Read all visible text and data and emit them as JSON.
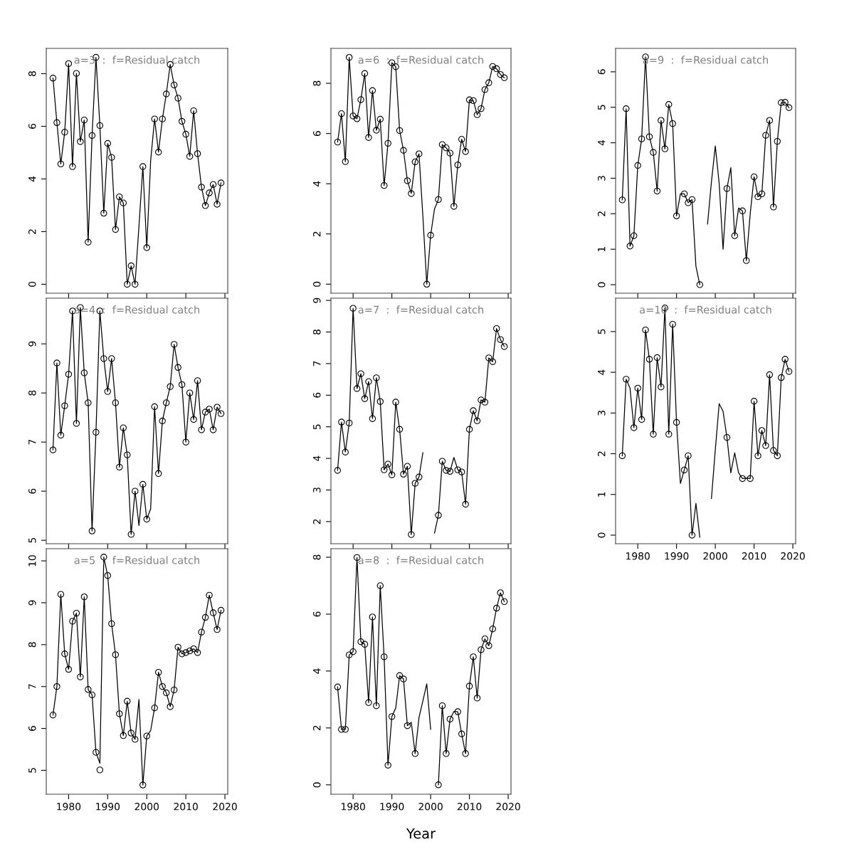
{
  "chart_data": [
    {
      "type": "line",
      "title": "a=3  :  f=Residual catch",
      "x": [
        1976,
        1977,
        1978,
        1979,
        1980,
        1981,
        1982,
        1983,
        1984,
        1985,
        1986,
        1987,
        1988,
        1989,
        1990,
        1991,
        1992,
        1993,
        1994,
        1995,
        1996,
        1997,
        1998,
        1999,
        2000,
        2001,
        2002,
        2003,
        2004,
        2005,
        2006,
        2007,
        2008,
        2009,
        2010,
        2011,
        2012,
        2013,
        2014,
        2015,
        2016,
        2017,
        2018,
        2019
      ],
      "xlim": [
        1974.28,
        2020.72
      ],
      "xticks": [
        1980,
        1990,
        2000,
        2010,
        2020
      ],
      "ylim": [
        -0.34,
        8.96
      ],
      "yticks": [
        0,
        2,
        4,
        6,
        8
      ],
      "tick_labels": "y",
      "grid": false,
      "series": [
        {
          "type": "line",
          "color": "#000000",
          "marker": "none",
          "values": [
            7.83,
            6.14,
            4.57,
            5.78,
            8.38,
            4.47,
            8.01,
            5.42,
            6.24,
            1.6,
            5.65,
            8.62,
            6.03,
            2.7,
            5.35,
            4.82,
            2.08,
            3.32,
            3.09,
            0,
            0.7,
            0,
            2.2,
            4.47,
            1.39,
            4.7,
            6.28,
            5.02,
            6.28,
            7.23,
            8.35,
            7.57,
            7.07,
            6.19,
            5.7,
            4.86,
            6.59,
            4.96,
            3.69,
            2.99,
            3.47,
            3.79,
            3.04,
            3.85
          ]
        },
        {
          "type": "scatter",
          "color": "#000000",
          "marker": "circle",
          "values": [
            7.83,
            6.14,
            4.57,
            5.78,
            8.38,
            4.47,
            8.01,
            5.42,
            6.24,
            1.6,
            5.65,
            8.62,
            6.03,
            2.7,
            5.35,
            4.82,
            2.08,
            3.32,
            3.09,
            0,
            0.7,
            0,
            null,
            4.47,
            1.39,
            null,
            6.28,
            5.02,
            6.28,
            7.23,
            8.35,
            7.57,
            7.07,
            6.19,
            5.7,
            4.86,
            6.59,
            4.96,
            3.69,
            2.99,
            3.47,
            3.79,
            3.04,
            3.85
          ]
        }
      ]
    },
    {
      "type": "line",
      "title": "a=4  :  f=Residual catch",
      "x": [
        1976,
        1977,
        1978,
        1979,
        1980,
        1981,
        1982,
        1983,
        1984,
        1985,
        1986,
        1987,
        1988,
        1989,
        1990,
        1991,
        1992,
        1993,
        1994,
        1995,
        1996,
        1997,
        1998,
        1999,
        2000,
        2001,
        2002,
        2003,
        2004,
        2005,
        2006,
        2007,
        2008,
        2009,
        2010,
        2011,
        2012,
        2013,
        2014,
        2015,
        2016,
        2017,
        2018,
        2019
      ],
      "xlim": [
        1974.28,
        2020.72
      ],
      "xticks": [
        1980,
        1990,
        2000,
        2010,
        2020
      ],
      "ylim": [
        4.93,
        9.93
      ],
      "yticks": [
        5,
        6,
        7,
        8,
        9
      ],
      "tick_labels": "y",
      "grid": false,
      "series": [
        {
          "type": "line",
          "color": "#000000",
          "marker": "none",
          "values": [
            6.84,
            8.61,
            7.14,
            7.74,
            8.38,
            9.67,
            7.38,
            9.74,
            8.41,
            7.8,
            5.19,
            7.2,
            9.67,
            8.7,
            8.03,
            8.7,
            7.8,
            6.49,
            7.29,
            6.74,
            5.12,
            6.0,
            5.3,
            6.14,
            5.43,
            5.64,
            7.72,
            6.36,
            7.43,
            7.8,
            8.13,
            8.99,
            8.52,
            8.17,
            7.0,
            8.0,
            7.46,
            8.25,
            7.25,
            7.61,
            7.67,
            7.25,
            7.71,
            7.58
          ]
        },
        {
          "type": "scatter",
          "color": "#000000",
          "marker": "circle",
          "values": [
            6.84,
            8.61,
            7.14,
            7.74,
            8.38,
            9.67,
            7.38,
            9.74,
            8.41,
            7.8,
            5.19,
            7.2,
            9.67,
            8.7,
            8.03,
            8.7,
            7.8,
            6.49,
            7.29,
            6.74,
            5.12,
            6.0,
            null,
            6.14,
            5.43,
            null,
            7.72,
            6.36,
            7.43,
            7.8,
            8.13,
            8.99,
            8.52,
            8.17,
            7.0,
            8.0,
            7.46,
            8.25,
            7.25,
            7.61,
            7.67,
            7.25,
            7.71,
            7.58
          ]
        }
      ]
    },
    {
      "type": "line",
      "title": "a=5  :  f=Residual catch",
      "x": [
        1976,
        1977,
        1978,
        1979,
        1980,
        1981,
        1982,
        1983,
        1984,
        1985,
        1986,
        1987,
        1988,
        1989,
        1990,
        1991,
        1992,
        1993,
        1994,
        1995,
        1996,
        1997,
        1998,
        1999,
        2000,
        2001,
        2002,
        2003,
        2004,
        2005,
        2006,
        2007,
        2008,
        2009,
        2010,
        2011,
        2012,
        2013,
        2014,
        2015,
        2016,
        2017,
        2018,
        2019
      ],
      "xlim": [
        1974.28,
        2020.72
      ],
      "xticks": [
        1980,
        1990,
        2000,
        2010,
        2020
      ],
      "ylim": [
        4.43,
        10.29
      ],
      "yticks": [
        5,
        6,
        7,
        8,
        9,
        10
      ],
      "grid": false,
      "series": [
        {
          "type": "line",
          "color": "#000000",
          "marker": "none",
          "values": [
            6.32,
            7.0,
            9.2,
            7.78,
            7.41,
            8.56,
            8.75,
            7.23,
            9.14,
            6.93,
            6.8,
            5.43,
            5.17,
            10.09,
            9.65,
            8.5,
            7.76,
            6.35,
            5.83,
            6.65,
            5.89,
            5.74,
            6.69,
            4.65,
            5.82,
            5.95,
            6.49,
            7.34,
            7.0,
            6.85,
            6.52,
            6.92,
            7.94,
            7.78,
            7.81,
            7.85,
            7.9,
            7.81,
            8.3,
            8.65,
            9.18,
            8.76,
            8.36,
            8.82
          ]
        },
        {
          "type": "scatter",
          "color": "#000000",
          "marker": "circle",
          "values": [
            6.32,
            7.0,
            9.2,
            7.78,
            7.41,
            8.56,
            8.75,
            7.23,
            9.14,
            6.93,
            6.8,
            5.43,
            5.01,
            10.09,
            9.65,
            8.5,
            7.76,
            6.35,
            5.83,
            6.65,
            5.89,
            5.74,
            null,
            4.65,
            5.82,
            null,
            6.49,
            7.34,
            7.0,
            6.85,
            6.52,
            6.92,
            7.94,
            7.78,
            7.81,
            7.85,
            7.9,
            7.81,
            8.3,
            8.65,
            9.18,
            8.76,
            8.36,
            8.82
          ]
        }
      ]
    },
    {
      "type": "line",
      "title": "a=6  :  f=Residual catch",
      "x": [
        1976,
        1977,
        1978,
        1979,
        1980,
        1981,
        1982,
        1983,
        1984,
        1985,
        1986,
        1987,
        1988,
        1989,
        1990,
        1991,
        1992,
        1993,
        1994,
        1995,
        1996,
        1997,
        1998,
        1999,
        2000,
        2001,
        2002,
        2003,
        2004,
        2005,
        2006,
        2007,
        2008,
        2009,
        2010,
        2011,
        2012,
        2013,
        2014,
        2015,
        2016,
        2017,
        2018,
        2019
      ],
      "xlim": [
        1974.28,
        2020.72
      ],
      "xticks": [
        1980,
        1990,
        2000,
        2010,
        2020
      ],
      "ylim": [
        -0.36,
        9.39
      ],
      "yticks": [
        0,
        2,
        4,
        6,
        8
      ],
      "tick_labels": "y",
      "grid": false,
      "series": [
        {
          "type": "line",
          "color": "#000000",
          "marker": "none",
          "values": [
            5.66,
            6.79,
            4.88,
            9.03,
            6.7,
            6.59,
            7.35,
            8.39,
            5.84,
            7.71,
            6.13,
            6.57,
            3.93,
            5.61,
            8.82,
            8.66,
            6.12,
            5.33,
            4.12,
            3.61,
            4.87,
            5.19,
            2.7,
            0,
            1.95,
            3.0,
            3.37,
            5.56,
            5.43,
            5.22,
            3.1,
            4.75,
            5.77,
            5.28,
            7.34,
            7.31,
            6.75,
            6.99,
            7.75,
            8.02,
            8.67,
            8.58,
            8.35,
            8.22
          ]
        },
        {
          "type": "scatter",
          "color": "#000000",
          "marker": "circle",
          "values": [
            5.66,
            6.79,
            4.88,
            9.03,
            6.7,
            6.59,
            7.35,
            8.39,
            5.84,
            7.71,
            6.13,
            6.57,
            3.93,
            5.61,
            8.82,
            8.66,
            6.12,
            5.33,
            4.12,
            3.61,
            4.87,
            5.19,
            null,
            0,
            1.95,
            null,
            3.37,
            5.56,
            5.43,
            5.22,
            3.1,
            4.75,
            5.77,
            5.28,
            7.34,
            7.31,
            6.75,
            6.99,
            7.75,
            8.02,
            8.67,
            8.58,
            8.35,
            8.22
          ]
        }
      ]
    },
    {
      "type": "line",
      "title": "a=7  :  f=Residual catch",
      "x": [
        1976,
        1977,
        1978,
        1979,
        1980,
        1981,
        1982,
        1983,
        1984,
        1985,
        1986,
        1987,
        1988,
        1989,
        1990,
        1991,
        1992,
        1993,
        1994,
        1995,
        1996,
        1997,
        1998,
        1999,
        2000,
        2001,
        2002,
        2003,
        2004,
        2005,
        2006,
        2007,
        2008,
        2009,
        2010,
        2011,
        2012,
        2013,
        2014,
        2015,
        2016,
        2017,
        2018,
        2019
      ],
      "xlim": [
        1974.28,
        2020.72
      ],
      "xticks": [
        1980,
        1990,
        2000,
        2010,
        2020
      ],
      "ylim": [
        1.3,
        9.07
      ],
      "yticks": [
        2,
        3,
        4,
        5,
        6,
        7,
        8,
        9
      ],
      "tick_labels": "y",
      "grid": false,
      "series": [
        {
          "type": "line",
          "color": "#000000",
          "marker": "none",
          "values": [
            3.62,
            5.15,
            4.2,
            5.12,
            8.75,
            6.21,
            6.68,
            5.89,
            6.43,
            5.26,
            6.55,
            5.8,
            3.64,
            3.82,
            3.48,
            5.78,
            4.92,
            3.5,
            3.75,
            1.59,
            3.21,
            3.41,
            4.18,
            null,
            null,
            1.64,
            2.2,
            3.91,
            3.62,
            3.59,
            4.03,
            3.64,
            3.57,
            2.55,
            4.92,
            5.51,
            5.19,
            5.85,
            5.78,
            7.18,
            7.06,
            8.11,
            7.76,
            7.54
          ]
        },
        {
          "type": "scatter",
          "color": "#000000",
          "marker": "circle",
          "values": [
            3.62,
            5.15,
            4.2,
            5.12,
            8.75,
            6.21,
            6.68,
            5.89,
            6.43,
            5.26,
            6.55,
            5.8,
            3.64,
            3.82,
            3.48,
            5.78,
            4.92,
            3.5,
            3.75,
            1.59,
            3.21,
            3.41,
            null,
            null,
            null,
            null,
            2.2,
            3.91,
            3.62,
            3.59,
            null,
            3.64,
            3.57,
            2.55,
            4.92,
            5.51,
            5.19,
            5.85,
            5.78,
            7.18,
            7.06,
            8.11,
            7.76,
            7.54
          ]
        }
      ]
    },
    {
      "type": "line",
      "title": "a=8  :  f=Residual catch",
      "xlabel": "Year",
      "x": [
        1976,
        1977,
        1978,
        1979,
        1980,
        1981,
        1982,
        1983,
        1984,
        1985,
        1986,
        1987,
        1988,
        1989,
        1990,
        1991,
        1992,
        1993,
        1994,
        1995,
        1996,
        1997,
        1998,
        1999,
        2000,
        2001,
        2002,
        2003,
        2004,
        2005,
        2006,
        2007,
        2008,
        2009,
        2010,
        2011,
        2012,
        2013,
        2014,
        2015,
        2016,
        2017,
        2018,
        2019
      ],
      "xlim": [
        1974.28,
        2020.72
      ],
      "xticks": [
        1980,
        1990,
        2000,
        2010,
        2020
      ],
      "ylim": [
        -0.33,
        8.3
      ],
      "yticks": [
        0,
        2,
        4,
        6,
        8
      ],
      "grid": false,
      "series": [
        {
          "type": "line",
          "color": "#000000",
          "marker": "none",
          "values": [
            3.44,
            1.95,
            1.95,
            4.57,
            4.68,
            7.99,
            5.03,
            4.94,
            2.89,
            5.9,
            2.78,
            7.0,
            4.5,
            0.69,
            2.4,
            2.7,
            3.84,
            3.72,
            2.08,
            2.2,
            1.1,
            2.37,
            2.95,
            3.55,
            1.95,
            null,
            0,
            2.78,
            1.1,
            2.31,
            2.58,
            2.57,
            1.79,
            1.1,
            3.47,
            4.5,
            3.05,
            4.75,
            5.13,
            4.89,
            5.48,
            6.21,
            6.75,
            6.44
          ]
        },
        {
          "type": "scatter",
          "color": "#000000",
          "marker": "circle",
          "values": [
            3.44,
            1.95,
            1.95,
            4.57,
            4.68,
            7.99,
            5.03,
            4.94,
            2.89,
            5.9,
            2.78,
            7.0,
            4.5,
            0.69,
            2.4,
            null,
            3.84,
            3.72,
            2.08,
            null,
            1.1,
            null,
            null,
            null,
            null,
            null,
            0,
            2.78,
            1.1,
            2.31,
            null,
            2.57,
            1.79,
            1.1,
            3.47,
            4.5,
            3.05,
            4.75,
            5.13,
            4.89,
            5.48,
            6.21,
            6.75,
            6.44
          ]
        }
      ]
    },
    {
      "type": "line",
      "title": "a=9  :  f=Residual catch",
      "x": [
        1976,
        1977,
        1978,
        1979,
        1980,
        1981,
        1982,
        1983,
        1984,
        1985,
        1986,
        1987,
        1988,
        1989,
        1990,
        1991,
        1992,
        1993,
        1994,
        1995,
        1996,
        1997,
        1998,
        1999,
        2000,
        2001,
        2002,
        2003,
        2004,
        2005,
        2006,
        2007,
        2008,
        2009,
        2010,
        2011,
        2012,
        2013,
        2014,
        2015,
        2016,
        2017,
        2018,
        2019
      ],
      "xlim": [
        1974.28,
        2020.72
      ],
      "xticks": [
        1980,
        1990,
        2000,
        2010,
        2020
      ],
      "ylim": [
        -0.24,
        6.66
      ],
      "yticks": [
        0,
        1,
        2,
        3,
        4,
        5,
        6
      ],
      "tick_labels": "y",
      "grid": false,
      "series": [
        {
          "type": "line",
          "color": "#000000",
          "marker": "none",
          "values": [
            2.39,
            4.96,
            1.09,
            1.38,
            3.36,
            4.11,
            6.42,
            4.17,
            3.73,
            2.64,
            4.63,
            3.83,
            5.08,
            4.54,
            1.94,
            2.56,
            2.56,
            2.31,
            2.4,
            0.52,
            0,
            null,
            1.71,
            2.9,
            3.91,
            2.85,
            1.0,
            2.71,
            3.3,
            1.38,
            2.16,
            2.08,
            0.68,
            2.0,
            3.04,
            2.48,
            2.56,
            4.21,
            4.63,
            2.19,
            4.04,
            5.13,
            5.14,
            4.99
          ]
        },
        {
          "type": "scatter",
          "color": "#000000",
          "marker": "circle",
          "values": [
            2.39,
            4.96,
            1.09,
            1.38,
            3.36,
            4.11,
            6.42,
            4.17,
            3.73,
            2.64,
            4.63,
            3.83,
            5.08,
            4.54,
            1.94,
            null,
            2.56,
            2.31,
            2.4,
            null,
            0,
            null,
            null,
            null,
            null,
            null,
            null,
            2.71,
            null,
            1.38,
            null,
            2.08,
            0.68,
            null,
            3.04,
            2.48,
            2.56,
            4.21,
            4.63,
            2.19,
            4.04,
            5.13,
            5.14,
            4.99
          ]
        }
      ]
    },
    {
      "type": "line",
      "title": "a=10  :  f=Residual catch",
      "x": [
        1976,
        1977,
        1978,
        1979,
        1980,
        1981,
        1982,
        1983,
        1984,
        1985,
        1986,
        1987,
        1988,
        1989,
        1990,
        1991,
        1992,
        1993,
        1994,
        1995,
        1996,
        1997,
        1998,
        1999,
        2000,
        2001,
        2002,
        2003,
        2004,
        2005,
        2006,
        2007,
        2008,
        2009,
        2010,
        2011,
        2012,
        2013,
        2014,
        2015,
        2016,
        2017,
        2018,
        2019
      ],
      "xlim": [
        1974.28,
        2020.72
      ],
      "xticks": [
        1980,
        1990,
        2000,
        2010,
        2020
      ],
      "ylim": [
        -0.21,
        5.82
      ],
      "yticks": [
        0,
        1,
        2,
        3,
        4,
        5
      ],
      "grid": false,
      "series": [
        {
          "type": "line",
          "color": "#000000",
          "marker": "none",
          "values": [
            1.95,
            3.83,
            3.61,
            2.64,
            3.61,
            2.84,
            5.04,
            4.32,
            2.48,
            4.36,
            3.64,
            5.58,
            2.48,
            5.18,
            2.77,
            1.27,
            1.6,
            1.95,
            0,
            0.78,
            -0.05,
            null,
            null,
            0.9,
            2.1,
            3.23,
            3.04,
            2.4,
            1.53,
            2.02,
            1.53,
            1.39,
            1.4,
            1.39,
            3.29,
            1.95,
            2.57,
            2.2,
            3.94,
            2.08,
            1.95,
            3.87,
            4.32,
            4.02
          ]
        },
        {
          "type": "scatter",
          "color": "#000000",
          "marker": "circle",
          "values": [
            1.95,
            3.83,
            null,
            2.64,
            3.61,
            2.84,
            5.04,
            4.32,
            2.48,
            4.36,
            3.64,
            5.58,
            2.48,
            5.18,
            2.77,
            null,
            1.6,
            1.95,
            0,
            null,
            null,
            null,
            null,
            null,
            null,
            null,
            null,
            2.4,
            null,
            null,
            null,
            1.39,
            null,
            1.39,
            3.29,
            1.95,
            2.57,
            2.2,
            3.94,
            2.08,
            1.95,
            3.87,
            4.32,
            4.02
          ]
        }
      ]
    }
  ]
}
